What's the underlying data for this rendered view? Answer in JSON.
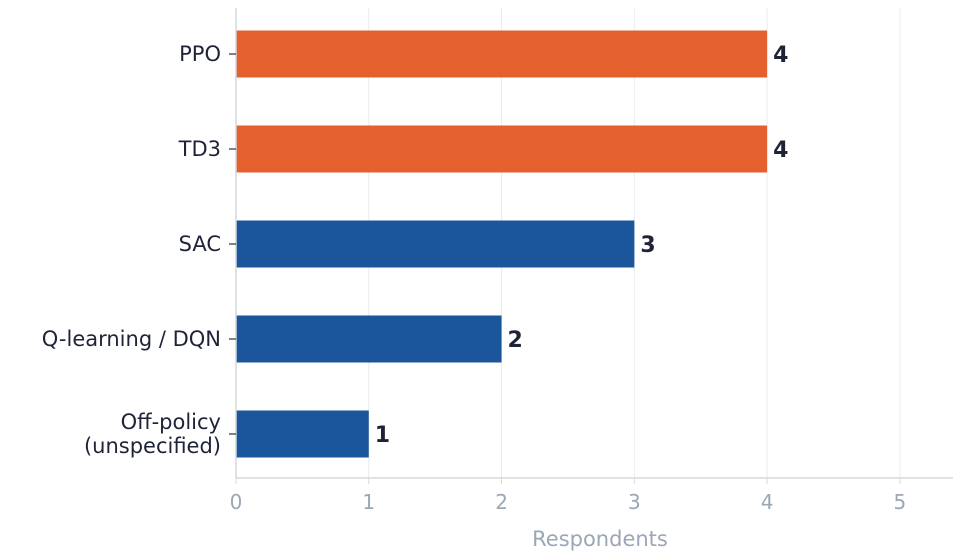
{
  "chart_data": {
    "type": "bar",
    "orientation": "horizontal",
    "title": "",
    "xlabel": "Respondents",
    "ylabel": "",
    "categories": [
      [
        "PPO"
      ],
      [
        "TD3"
      ],
      [
        "SAC"
      ],
      [
        "Q-learning / DQN"
      ],
      [
        "Off-policy",
        "(unspecified)"
      ]
    ],
    "values": [
      4,
      4,
      3,
      2,
      1
    ],
    "bar_colors": [
      "#e4602c",
      "#e4602c",
      "#1b559b",
      "#1b559b",
      "#1b559b"
    ],
    "xlim": [
      0,
      5.4
    ],
    "x_ticks": [
      0,
      1,
      2,
      3,
      4,
      5
    ],
    "grid": "vertical",
    "legend": "none",
    "colors": {
      "highlight": "#e4602c",
      "base": "#1b559b",
      "grid": "#e9ebee",
      "axis": "#d4d8de",
      "text": "#1f2338",
      "muted": "#9aa7b6"
    }
  }
}
